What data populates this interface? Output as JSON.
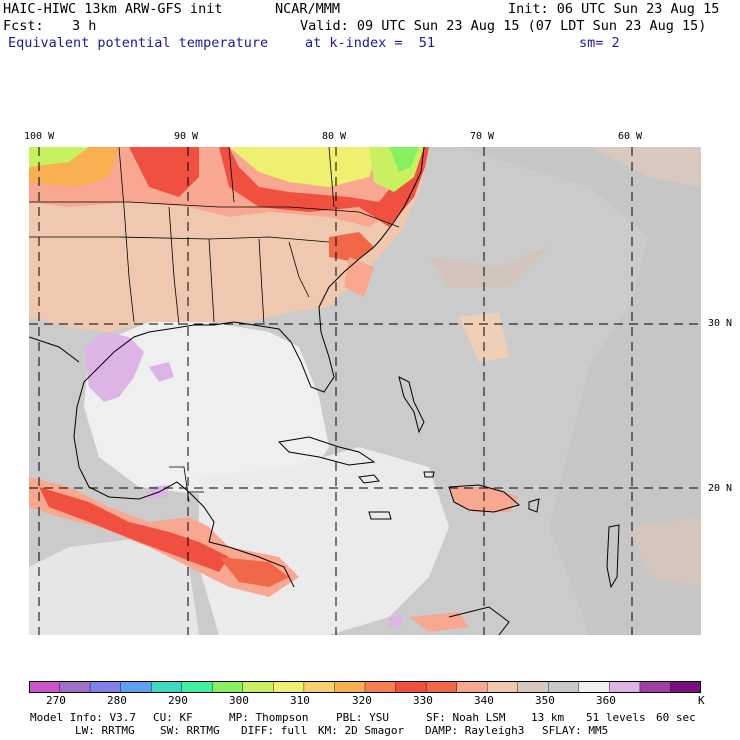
{
  "header": {
    "model": "HAIC-HIWC 13km ARW-GFS init",
    "center": "NCAR/MMM",
    "init": "Init: 06 UTC Sun 23 Aug 15",
    "fcst_label": "Fcst:",
    "fcst_value": "3 h",
    "valid": "Valid: 09 UTC Sun 23 Aug 15 (07 LDT Sun 23 Aug 15)",
    "field": "Equivalent potential temperature",
    "level": "at k-index =  51",
    "smoothing": "sm= 2"
  },
  "map": {
    "lon_labels": [
      "100 W",
      "90 W",
      "80 W",
      "70 W",
      "60 W"
    ],
    "lat_labels": [
      "30 N",
      "20 N"
    ]
  },
  "colorbar": {
    "colors": [
      "#cc55cc",
      "#a070c8",
      "#8080e8",
      "#60a0f0",
      "#40d8c0",
      "#40f0a0",
      "#88f060",
      "#c8f060",
      "#f0f070",
      "#f8d070",
      "#f8b050",
      "#f88050",
      "#f05040",
      "#f06848",
      "#f8a890",
      "#f0c8b0",
      "#d8c8c0",
      "#c8c8c8",
      "#f0f0f0",
      "#dcb4e6",
      "#a040a0",
      "#7a1080"
    ],
    "tick_labels": [
      "270",
      "280",
      "290",
      "300",
      "310",
      "320",
      "330",
      "340",
      "350",
      "360"
    ],
    "unit": "K"
  },
  "model_info": {
    "line1": [
      "Model Info: V3.7",
      "CU: KF",
      "MP: Thompson",
      "PBL: YSU",
      "SF: Noah LSM",
      "13 km",
      "51 levels",
      "60 sec"
    ],
    "line2": [
      "LW: RRTMG",
      "SW: RRTMG",
      "DIFF: full",
      "KM: 2D Smagor",
      "DAMP: Rayleigh3",
      "SFLAY: MM5"
    ]
  }
}
